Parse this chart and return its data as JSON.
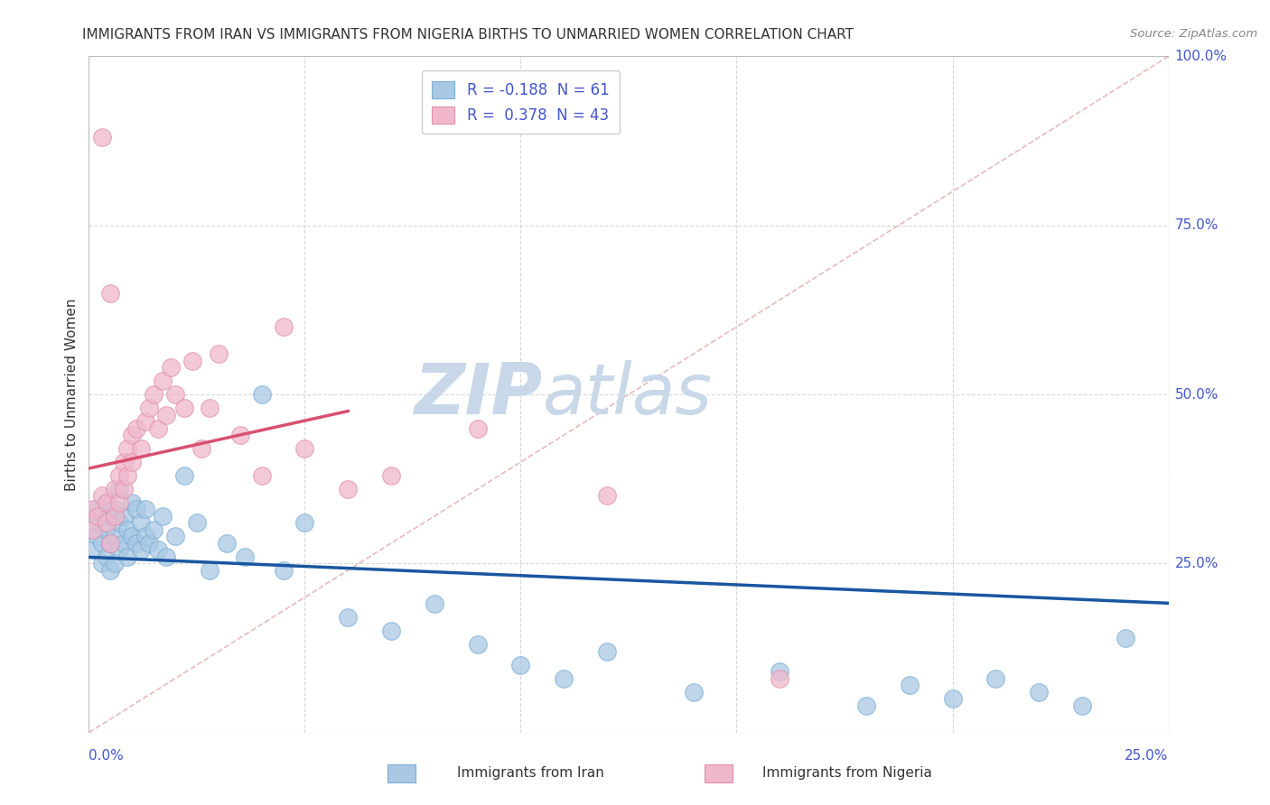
{
  "title": "IMMIGRANTS FROM IRAN VS IMMIGRANTS FROM NIGERIA BIRTHS TO UNMARRIED WOMEN CORRELATION CHART",
  "source": "Source: ZipAtlas.com",
  "xmin": 0.0,
  "xmax": 0.25,
  "ymin": 0.0,
  "ymax": 1.0,
  "iran_R": -0.188,
  "nigeria_R": 0.378,
  "iran_N": 61,
  "nigeria_N": 43,
  "iran_color": "#aac8e4",
  "iran_edge_color": "#7aafd4",
  "iran_line_color": "#1a56a0",
  "nigeria_color": "#f0b8cc",
  "nigeria_edge_color": "#e090aa",
  "nigeria_line_color": "#d85070",
  "ref_line_color": "#d8a0a0",
  "grid_color": "#d8d8d8",
  "watermark_color": "#c8d8e8",
  "background_color": "#ffffff",
  "iran_x": [
    0.001,
    0.001,
    0.002,
    0.002,
    0.003,
    0.003,
    0.003,
    0.004,
    0.004,
    0.004,
    0.005,
    0.005,
    0.005,
    0.006,
    0.006,
    0.006,
    0.007,
    0.007,
    0.007,
    0.008,
    0.008,
    0.009,
    0.009,
    0.01,
    0.01,
    0.011,
    0.011,
    0.012,
    0.012,
    0.013,
    0.013,
    0.014,
    0.015,
    0.016,
    0.017,
    0.018,
    0.02,
    0.022,
    0.025,
    0.028,
    0.032,
    0.036,
    0.04,
    0.045,
    0.05,
    0.06,
    0.07,
    0.08,
    0.09,
    0.1,
    0.11,
    0.12,
    0.14,
    0.16,
    0.18,
    0.19,
    0.2,
    0.21,
    0.22,
    0.23,
    0.24
  ],
  "iran_y": [
    0.27,
    0.31,
    0.29,
    0.33,
    0.25,
    0.28,
    0.32,
    0.26,
    0.3,
    0.34,
    0.24,
    0.28,
    0.32,
    0.25,
    0.29,
    0.33,
    0.27,
    0.31,
    0.36,
    0.28,
    0.32,
    0.26,
    0.3,
    0.29,
    0.34,
    0.28,
    0.33,
    0.27,
    0.31,
    0.29,
    0.33,
    0.28,
    0.3,
    0.27,
    0.32,
    0.26,
    0.29,
    0.38,
    0.31,
    0.24,
    0.28,
    0.26,
    0.5,
    0.24,
    0.31,
    0.17,
    0.15,
    0.19,
    0.13,
    0.1,
    0.08,
    0.12,
    0.06,
    0.09,
    0.04,
    0.07,
    0.05,
    0.08,
    0.06,
    0.04,
    0.14
  ],
  "nigeria_x": [
    0.001,
    0.001,
    0.002,
    0.003,
    0.003,
    0.004,
    0.004,
    0.005,
    0.005,
    0.006,
    0.006,
    0.007,
    0.007,
    0.008,
    0.008,
    0.009,
    0.009,
    0.01,
    0.01,
    0.011,
    0.012,
    0.013,
    0.014,
    0.015,
    0.016,
    0.017,
    0.018,
    0.019,
    0.02,
    0.022,
    0.024,
    0.026,
    0.028,
    0.03,
    0.035,
    0.04,
    0.045,
    0.05,
    0.06,
    0.07,
    0.09,
    0.12,
    0.16
  ],
  "nigeria_y": [
    0.3,
    0.33,
    0.32,
    0.88,
    0.35,
    0.31,
    0.34,
    0.28,
    0.65,
    0.32,
    0.36,
    0.34,
    0.38,
    0.36,
    0.4,
    0.38,
    0.42,
    0.4,
    0.44,
    0.45,
    0.42,
    0.46,
    0.48,
    0.5,
    0.45,
    0.52,
    0.47,
    0.54,
    0.5,
    0.48,
    0.55,
    0.42,
    0.48,
    0.56,
    0.44,
    0.38,
    0.6,
    0.42,
    0.36,
    0.38,
    0.45,
    0.35,
    0.08
  ]
}
